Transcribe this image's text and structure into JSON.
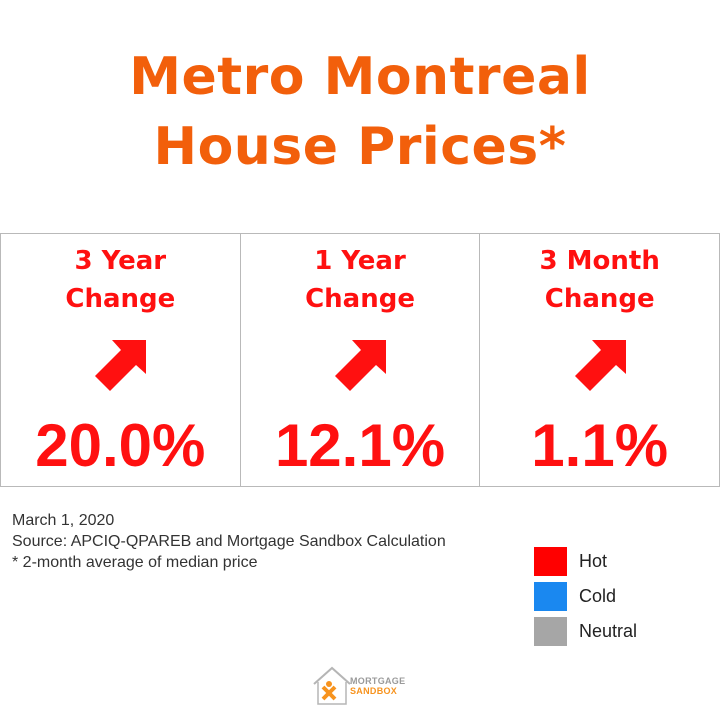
{
  "title": {
    "line1": "Metro Montreal",
    "line2": "House Prices*"
  },
  "cards": [
    {
      "label_line1": "3 Year",
      "label_line2": "Change",
      "value": "20.0%",
      "direction": "up",
      "status": "Hot"
    },
    {
      "label_line1": "1 Year",
      "label_line2": "Change",
      "value": "12.1%",
      "direction": "up",
      "status": "Hot"
    },
    {
      "label_line1": "3 Month",
      "label_line2": "Change",
      "value": "1.1%",
      "direction": "up",
      "status": "Hot"
    }
  ],
  "notes": {
    "date": "March 1, 2020",
    "source": "Source: APCIQ-QPAREB  and Mortgage Sandbox Calculation",
    "footnote": "* 2-month average of median price"
  },
  "legend": [
    {
      "label": "Hot",
      "color": "#ff0000"
    },
    {
      "label": "Cold",
      "color": "#1a88f0"
    },
    {
      "label": "Neutral",
      "color": "#a6a6a6"
    }
  ],
  "logo": {
    "line1": "MORTGAGE",
    "line2": "SANDBOX",
    "icon": "house-logo-icon"
  },
  "colors": {
    "title": "#f25f0b",
    "hot": "#ff1010",
    "border": "#b9b9b9"
  }
}
